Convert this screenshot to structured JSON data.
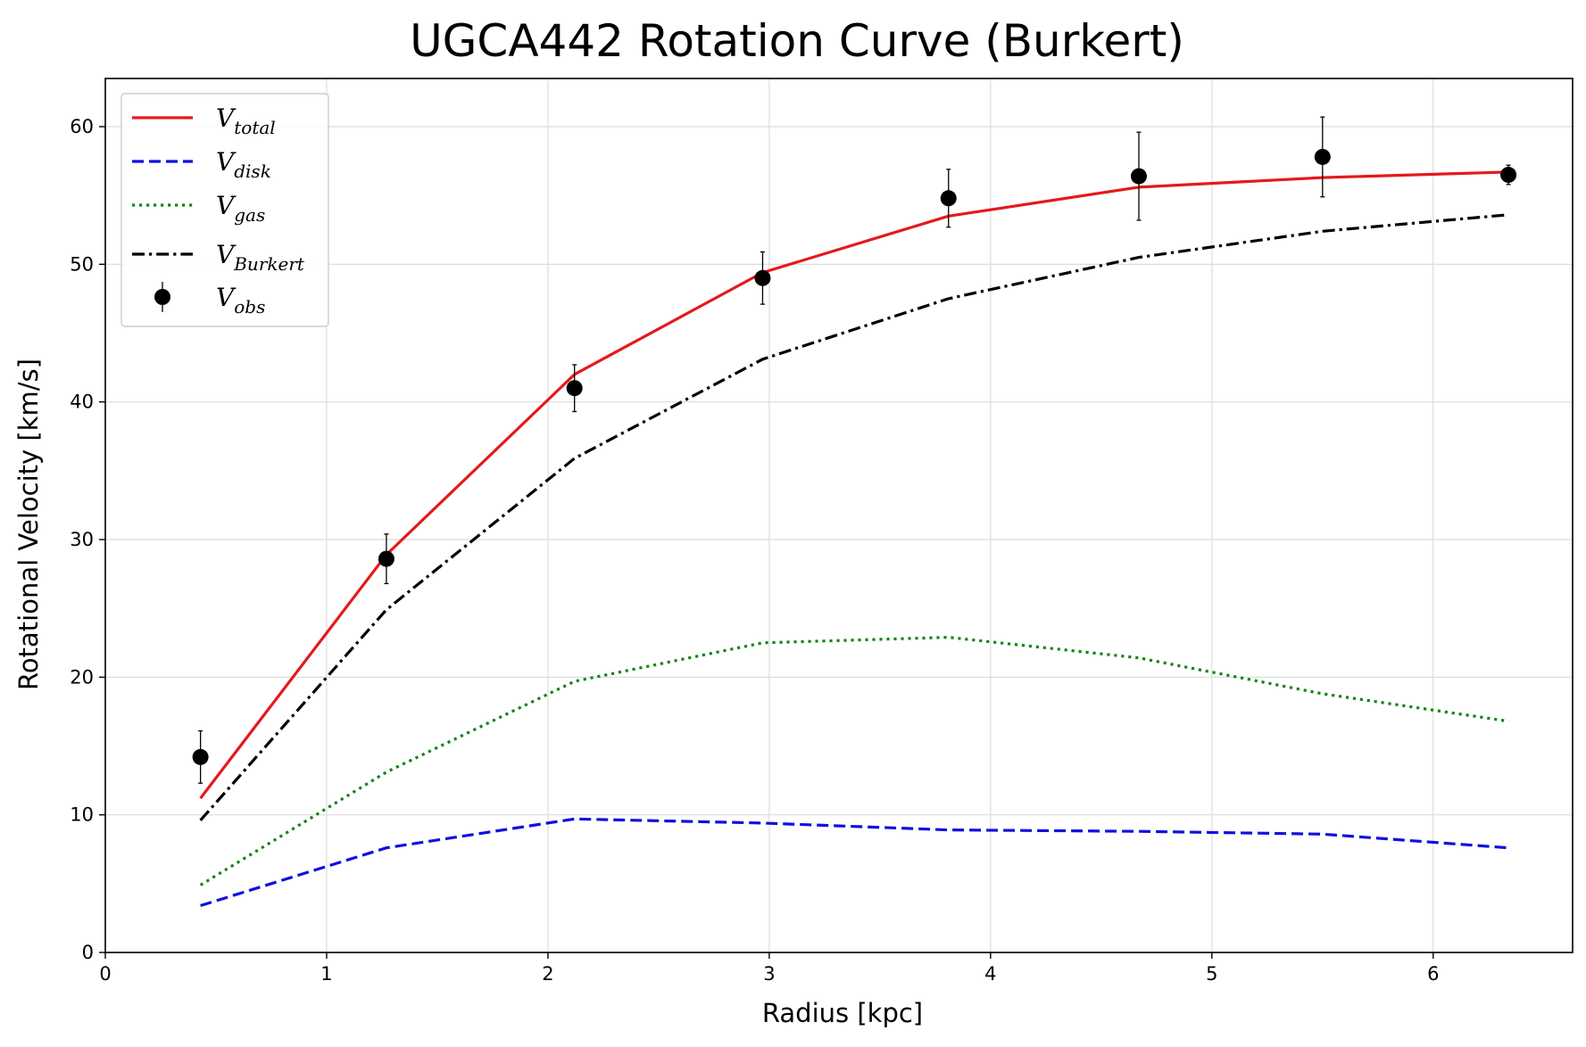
{
  "chart_data": {
    "type": "line",
    "title": "UGCA442 Rotation Curve (Burkert)",
    "xlabel": "Radius [kpc]",
    "ylabel": "Rotational Velocity [km/s]",
    "xlim": [
      0,
      6.63
    ],
    "ylim": [
      0,
      63.5
    ],
    "xticks": [
      0,
      1,
      2,
      3,
      4,
      5,
      6
    ],
    "yticks": [
      0,
      10,
      20,
      30,
      40,
      50,
      60
    ],
    "grid": true,
    "legend_position": "top-left",
    "x": [
      0.43,
      1.27,
      2.12,
      2.97,
      3.81,
      4.67,
      5.5,
      6.34
    ],
    "series": [
      {
        "key": "total",
        "name_main": "V",
        "name_sub": "total",
        "style": "solid",
        "color": "#e31a1c",
        "values": [
          11.2,
          28.9,
          42.0,
          49.4,
          53.5,
          55.6,
          56.3,
          56.7
        ]
      },
      {
        "key": "disk",
        "name_main": "V",
        "name_sub": "disk",
        "style": "dashed",
        "color": "#1010e0",
        "values": [
          3.4,
          7.6,
          9.7,
          9.4,
          8.9,
          8.8,
          8.6,
          7.6
        ]
      },
      {
        "key": "gas",
        "name_main": "V",
        "name_sub": "gas",
        "style": "dotted",
        "color": "#168516",
        "values": [
          4.9,
          13.1,
          19.7,
          22.5,
          22.9,
          21.4,
          18.8,
          16.8
        ]
      },
      {
        "key": "burkert",
        "name_main": "V",
        "name_sub": "Burkert",
        "style": "dashdot",
        "color": "#000000",
        "values": [
          9.6,
          24.9,
          35.9,
          43.1,
          47.5,
          50.5,
          52.4,
          53.6
        ]
      }
    ],
    "observed": {
      "name_main": "V",
      "name_sub": "obs",
      "color": "#000000",
      "values": [
        14.2,
        28.6,
        41.0,
        49.0,
        54.8,
        56.4,
        57.8,
        56.5
      ],
      "errors": [
        1.9,
        1.8,
        1.7,
        1.9,
        2.1,
        3.2,
        2.9,
        0.7
      ]
    }
  }
}
